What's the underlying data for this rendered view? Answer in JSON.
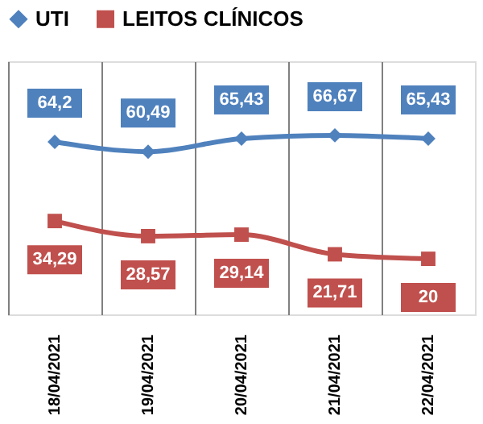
{
  "chart_data": {
    "type": "line",
    "categories": [
      "18/04/2021",
      "19/04/2021",
      "20/04/2021",
      "21/04/2021",
      "22/04/2021"
    ],
    "series": [
      {
        "name": "UTI",
        "color": "#4f81bd",
        "marker": "diamond",
        "values": [
          64.2,
          60.49,
          65.43,
          66.67,
          65.43
        ],
        "value_labels": [
          "64,2",
          "60,49",
          "65,43",
          "66,67",
          "65,43"
        ]
      },
      {
        "name": "LEITOS CLÍNICOS",
        "color": "#c0504d",
        "marker": "square",
        "values": [
          34.29,
          28.57,
          29.14,
          21.71,
          20
        ],
        "value_labels": [
          "34,29",
          "28,57",
          "29,14",
          "21,71",
          "20"
        ]
      }
    ],
    "grid": "x",
    "legend": "top",
    "tick_labels": "x"
  }
}
